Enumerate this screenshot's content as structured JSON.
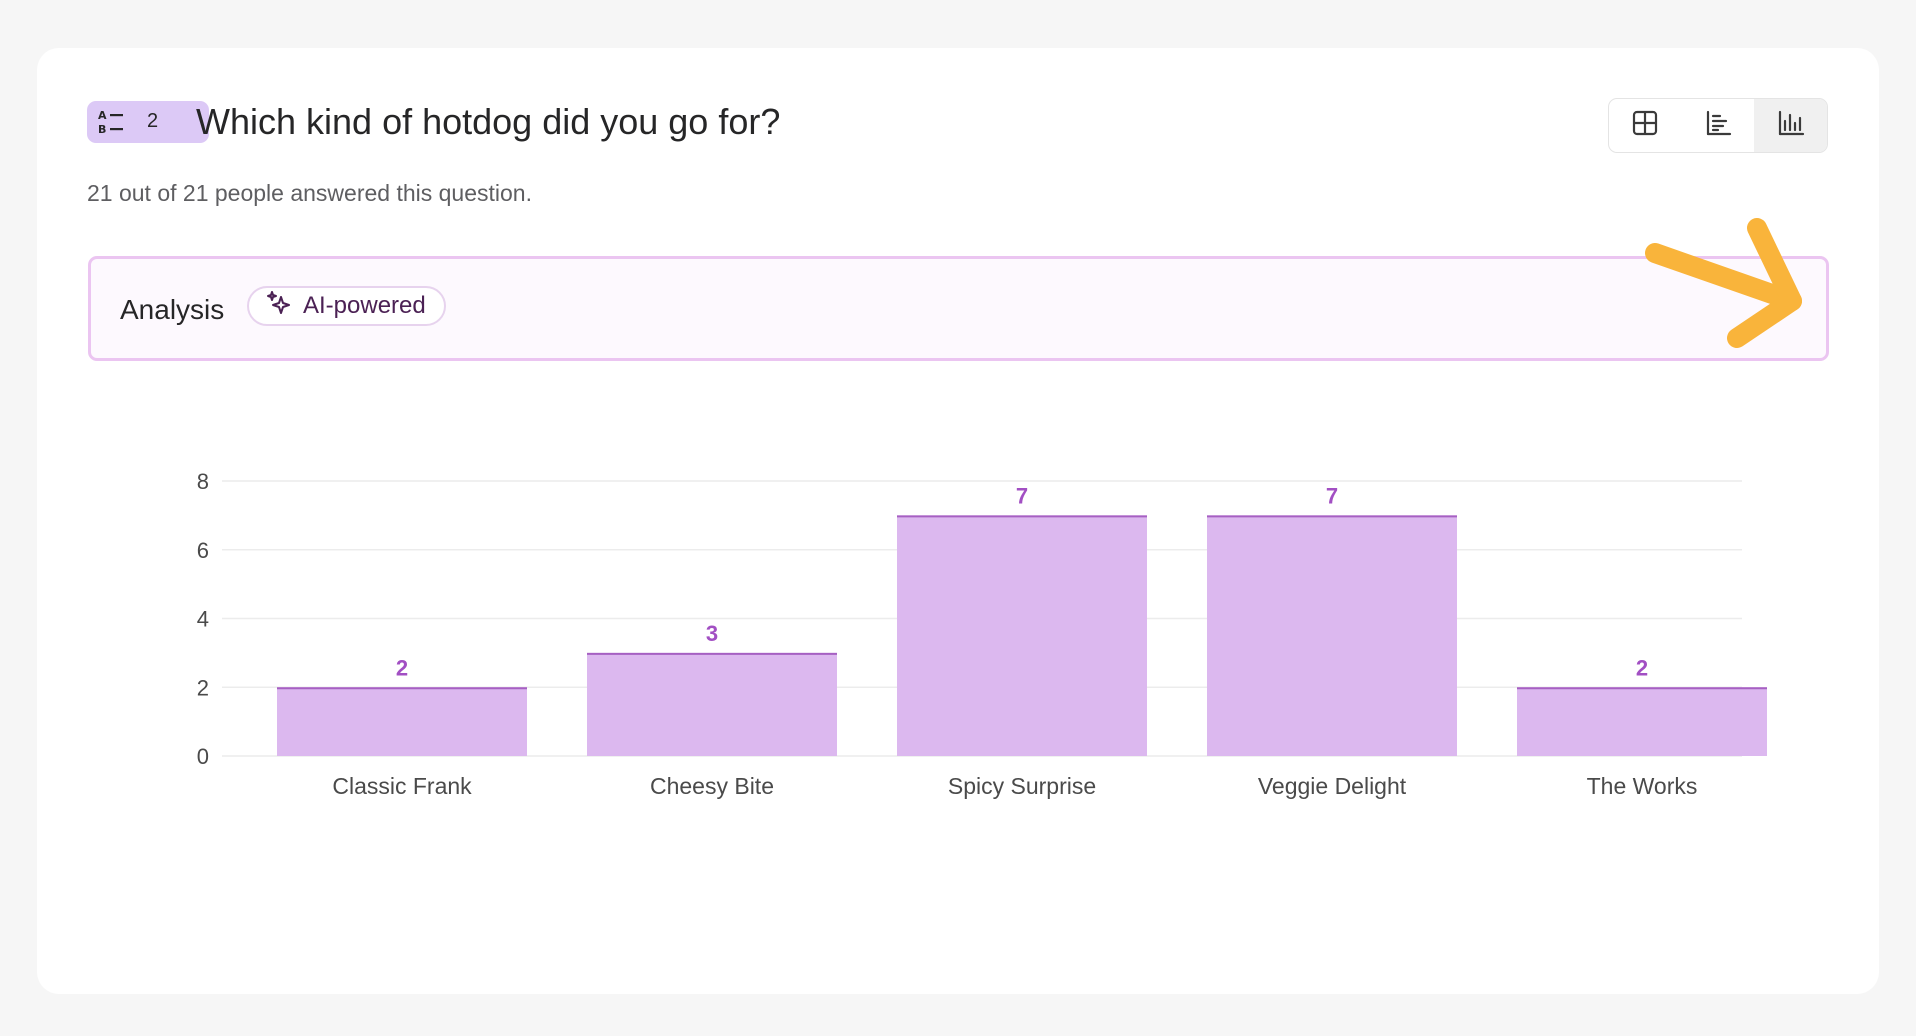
{
  "question": {
    "type_icon": "multiple-choice-icon",
    "number": "2",
    "title": "Which kind of hotdog did you go for?",
    "subtitle": "21 out of 21 people answered this question."
  },
  "view_toggle": {
    "options": [
      {
        "icon": "table-view-icon",
        "active": false
      },
      {
        "icon": "horizontal-bar-view-icon",
        "active": false
      },
      {
        "icon": "vertical-bar-view-icon",
        "active": true
      }
    ]
  },
  "analysis": {
    "label": "Analysis",
    "badge_label": "AI-powered",
    "badge_icon": "sparkle-icon",
    "toggle_icon": "caret-down-icon"
  },
  "annotation": {
    "icon": "arrow-pointer-icon",
    "color": "#f9b43b"
  },
  "colors": {
    "bar_fill": "#dcb8ef",
    "bar_top": "#a660c2",
    "value_label": "#a24fc3",
    "grid": "#ececec",
    "axis_text": "#4a4a4a"
  },
  "chart_data": {
    "type": "bar",
    "categories": [
      "Classic Frank",
      "Cheesy Bite",
      "Spicy Surprise",
      "Veggie Delight",
      "The Works"
    ],
    "values": [
      2,
      3,
      7,
      7,
      2
    ],
    "yticks": [
      0,
      2,
      4,
      6,
      8
    ],
    "ylim": [
      0,
      8
    ],
    "grid": true,
    "data_labels": true
  }
}
